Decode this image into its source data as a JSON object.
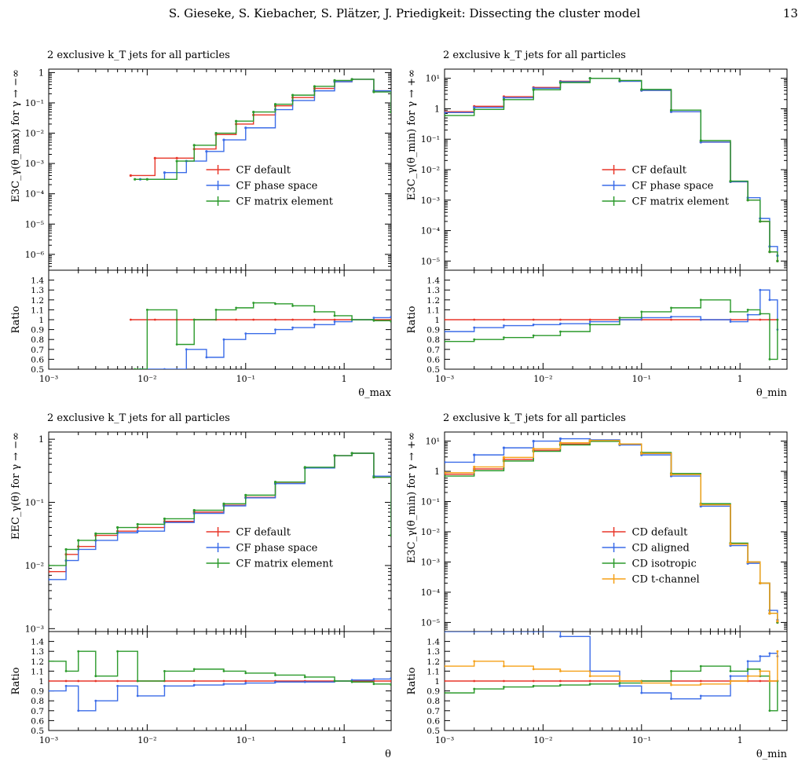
{
  "header": {
    "title": "S. Gieseke, S. Kiebacher, S. Plätzer, J. Priedigkeit: Dissecting the cluster model",
    "page_number": "13"
  },
  "colors": {
    "red": "#e8372a",
    "blue": "#3b6ce8",
    "green": "#2b9a2b",
    "orange": "#f5a017"
  },
  "chart_data": [
    {
      "type": "line",
      "subtitle": "2 exclusive k_T jets for all particles",
      "xlabel": "θ_max",
      "ylabel": "E3C_γ(θ_max) for γ → −∞",
      "ratio_label": "Ratio",
      "xlog": true,
      "ylog": true,
      "xlim": [
        0.001,
        3
      ],
      "ylim": [
        3e-07,
        1.3
      ],
      "x_ticks": [
        "10⁻³",
        "10⁻²",
        "10⁻¹",
        "1"
      ],
      "y_ticks": [
        "10⁻⁶",
        "10⁻⁵",
        "10⁻⁴",
        "10⁻³",
        "10⁻²",
        "10⁻¹",
        "1"
      ],
      "ratio_ylim": [
        0.5,
        1.5
      ],
      "ratio_ticks": [
        "0.5",
        "0.6",
        "0.7",
        "0.8",
        "0.9",
        "1",
        "1.1",
        "1.2",
        "1.3",
        "1.4"
      ],
      "legend": {
        "placement": "center-right"
      },
      "series": [
        {
          "name": "CF default",
          "color": "#e8372a",
          "x": [
            0.0068,
            0.012,
            0.02,
            0.03,
            0.05,
            0.08,
            0.12,
            0.2,
            0.3,
            0.5,
            0.8,
            1.2,
            2,
            3
          ],
          "y": [
            0.0004,
            0.0015,
            0.0015,
            0.003,
            0.009,
            0.02,
            0.04,
            0.08,
            0.15,
            0.3,
            0.5,
            0.6,
            0.25,
            0.05
          ],
          "ratio": [
            1,
            1,
            1,
            1,
            1,
            1,
            1,
            1,
            1,
            1,
            1,
            1,
            1,
            1
          ]
        },
        {
          "name": "CF phase space",
          "color": "#3b6ce8",
          "x": [
            0.0085,
            0.015,
            0.025,
            0.04,
            0.06,
            0.1,
            0.2,
            0.3,
            0.5,
            0.8,
            1.2,
            2,
            3
          ],
          "y": [
            0.0003,
            0.0005,
            0.0012,
            0.0025,
            0.006,
            0.015,
            0.06,
            0.12,
            0.25,
            0.5,
            0.6,
            0.25,
            0.05
          ],
          "ratio": [
            0.5,
            0.5,
            0.7,
            0.62,
            0.8,
            0.86,
            0.9,
            0.92,
            0.95,
            0.98,
            1.0,
            1.02,
            1.03
          ]
        },
        {
          "name": "CF matrix element",
          "color": "#2b9a2b",
          "x": [
            0.0075,
            0.01,
            0.02,
            0.03,
            0.05,
            0.08,
            0.12,
            0.2,
            0.3,
            0.5,
            0.8,
            1.2,
            2,
            3
          ],
          "y": [
            0.0003,
            0.0003,
            0.0012,
            0.004,
            0.01,
            0.025,
            0.05,
            0.09,
            0.18,
            0.35,
            0.55,
            0.6,
            0.23,
            0.05
          ],
          "ratio": [
            0.5,
            1.1,
            0.75,
            1.0,
            1.1,
            1.12,
            1.17,
            1.16,
            1.14,
            1.08,
            1.04,
            1.0,
            0.99,
            0.98
          ]
        }
      ]
    },
    {
      "type": "line",
      "subtitle": "2 exclusive k_T jets for all particles",
      "xlabel": "θ_min",
      "ylabel": "E3C_γ(θ_min) for γ → +∞",
      "ratio_label": "Ratio",
      "xlog": true,
      "ylog": true,
      "xlim": [
        0.001,
        3
      ],
      "ylim": [
        5e-06,
        20
      ],
      "x_ticks": [
        "10⁻³",
        "10⁻²",
        "10⁻¹",
        "1"
      ],
      "y_ticks": [
        "10⁻⁵",
        "10⁻⁴",
        "10⁻³",
        "10⁻²",
        "10⁻¹",
        "1",
        "10¹"
      ],
      "ratio_ylim": [
        0.5,
        1.5
      ],
      "ratio_ticks": [
        "0.5",
        "0.6",
        "0.7",
        "0.8",
        "0.9",
        "1",
        "1.1",
        "1.2",
        "1.3",
        "1.4"
      ],
      "legend": {
        "placement": "center-right"
      },
      "series": [
        {
          "name": "CF default",
          "color": "#e8372a",
          "x": [
            0.001,
            0.002,
            0.004,
            0.008,
            0.015,
            0.03,
            0.06,
            0.1,
            0.2,
            0.4,
            0.8,
            1.2,
            1.6,
            2,
            2.4
          ],
          "y": [
            0.8,
            1.2,
            2.5,
            5,
            8,
            10,
            8,
            4,
            0.8,
            0.08,
            0.004,
            0.001,
            0.0002,
            2e-05,
            1e-05
          ],
          "ratio": [
            1,
            1,
            1,
            1,
            1,
            1,
            1,
            1,
            1,
            1,
            1,
            1,
            1,
            1,
            1
          ]
        },
        {
          "name": "CF phase space",
          "color": "#3b6ce8",
          "x": [
            0.001,
            0.002,
            0.004,
            0.008,
            0.015,
            0.03,
            0.06,
            0.1,
            0.2,
            0.4,
            0.8,
            1.2,
            1.6,
            2,
            2.4
          ],
          "y": [
            0.75,
            1.1,
            2.3,
            4.7,
            7.7,
            10,
            8,
            4,
            0.8,
            0.08,
            0.004,
            0.0012,
            0.00025,
            3e-05,
            1.5e-05
          ],
          "ratio": [
            0.88,
            0.92,
            0.94,
            0.95,
            0.96,
            0.98,
            1.0,
            1.02,
            1.03,
            1.0,
            0.98,
            1.05,
            1.3,
            1.2,
            0.9
          ]
        },
        {
          "name": "CF matrix element",
          "color": "#2b9a2b",
          "x": [
            0.001,
            0.002,
            0.004,
            0.008,
            0.015,
            0.03,
            0.06,
            0.1,
            0.2,
            0.4,
            0.8,
            1.2,
            1.6,
            2,
            2.4
          ],
          "y": [
            0.6,
            0.95,
            2,
            4.2,
            7.2,
            10,
            8.5,
            4.3,
            0.9,
            0.09,
            0.0042,
            0.001,
            0.0002,
            2e-05,
            1e-05
          ],
          "ratio": [
            0.78,
            0.8,
            0.82,
            0.84,
            0.88,
            0.95,
            1.02,
            1.08,
            1.12,
            1.2,
            1.08,
            1.1,
            1.06,
            0.6,
            1.0
          ]
        }
      ]
    },
    {
      "type": "line",
      "subtitle": "2 exclusive k_T jets for all particles",
      "xlabel": "θ",
      "ylabel": "EEC_γ(θ) for γ → −∞",
      "ratio_label": "Ratio",
      "xlog": true,
      "ylog": true,
      "xlim": [
        0.001,
        3
      ],
      "ylim": [
        0.0009,
        1.3
      ],
      "x_ticks": [
        "10⁻³",
        "10⁻²",
        "10⁻¹",
        "1"
      ],
      "y_ticks": [
        "10⁻³",
        "10⁻²",
        "10⁻¹",
        "1"
      ],
      "ratio_ylim": [
        0.5,
        1.5
      ],
      "ratio_ticks": [
        "0.5",
        "0.6",
        "0.7",
        "0.8",
        "0.9",
        "1",
        "1.1",
        "1.2",
        "1.3",
        "1.4"
      ],
      "legend": {
        "placement": "center-right"
      },
      "series": [
        {
          "name": "CF default",
          "color": "#e8372a",
          "x": [
            0.001,
            0.0015,
            0.002,
            0.003,
            0.005,
            0.008,
            0.015,
            0.03,
            0.06,
            0.1,
            0.2,
            0.4,
            0.8,
            1.2,
            2,
            3
          ],
          "y": [
            0.008,
            0.015,
            0.02,
            0.03,
            0.035,
            0.04,
            0.05,
            0.07,
            0.09,
            0.12,
            0.2,
            0.35,
            0.55,
            0.6,
            0.25,
            0.03
          ],
          "ratio": [
            1,
            1,
            1,
            1,
            1,
            1,
            1,
            1,
            1,
            1,
            1,
            1,
            1,
            1,
            1,
            1
          ]
        },
        {
          "name": "CF phase space",
          "color": "#3b6ce8",
          "x": [
            0.001,
            0.0015,
            0.002,
            0.003,
            0.005,
            0.008,
            0.015,
            0.03,
            0.06,
            0.1,
            0.2,
            0.4,
            0.8,
            1.2,
            2,
            3
          ],
          "y": [
            0.006,
            0.012,
            0.018,
            0.025,
            0.033,
            0.035,
            0.048,
            0.067,
            0.088,
            0.118,
            0.198,
            0.35,
            0.55,
            0.6,
            0.26,
            0.03
          ],
          "ratio": [
            0.9,
            0.95,
            0.7,
            0.8,
            0.95,
            0.85,
            0.95,
            0.96,
            0.97,
            0.98,
            0.99,
            0.99,
            1.0,
            1.01,
            1.02,
            1.03
          ]
        },
        {
          "name": "CF matrix element",
          "color": "#2b9a2b",
          "x": [
            0.001,
            0.0015,
            0.002,
            0.003,
            0.005,
            0.008,
            0.015,
            0.03,
            0.06,
            0.1,
            0.2,
            0.4,
            0.8,
            1.2,
            2,
            3
          ],
          "y": [
            0.01,
            0.018,
            0.025,
            0.032,
            0.04,
            0.045,
            0.055,
            0.075,
            0.095,
            0.13,
            0.21,
            0.36,
            0.55,
            0.6,
            0.25,
            0.03
          ],
          "ratio": [
            1.2,
            1.1,
            1.3,
            1.05,
            1.3,
            1.0,
            1.1,
            1.12,
            1.1,
            1.08,
            1.06,
            1.04,
            1.0,
            0.99,
            0.97,
            0.96
          ]
        }
      ]
    },
    {
      "type": "line",
      "subtitle": "2 exclusive k_T jets for all particles",
      "xlabel": "θ_min",
      "ylabel": "E3C_γ(θ_min) for γ → +∞",
      "ratio_label": "Ratio",
      "xlog": true,
      "ylog": true,
      "xlim": [
        0.001,
        3
      ],
      "ylim": [
        5e-06,
        20
      ],
      "x_ticks": [
        "10⁻³",
        "10⁻²",
        "10⁻¹",
        "1"
      ],
      "y_ticks": [
        "10⁻⁵",
        "10⁻⁴",
        "10⁻³",
        "10⁻²",
        "10⁻¹",
        "1",
        "10¹"
      ],
      "ratio_ylim": [
        0.5,
        1.5
      ],
      "ratio_ticks": [
        "0.5",
        "0.6",
        "0.7",
        "0.8",
        "0.9",
        "1",
        "1.1",
        "1.2",
        "1.3",
        "1.4"
      ],
      "legend": {
        "placement": "center-right"
      },
      "series": [
        {
          "name": "CD default",
          "color": "#e8372a",
          "x": [
            0.001,
            0.002,
            0.004,
            0.008,
            0.015,
            0.03,
            0.06,
            0.1,
            0.2,
            0.4,
            0.8,
            1.2,
            1.6,
            2,
            2.4
          ],
          "y": [
            0.8,
            1.2,
            2.5,
            5,
            8,
            10,
            8,
            4,
            0.8,
            0.08,
            0.004,
            0.001,
            0.0002,
            2e-05,
            1e-05
          ],
          "ratio": [
            1,
            1,
            1,
            1,
            1,
            1,
            1,
            1,
            1,
            1,
            1,
            1,
            1,
            1,
            1
          ]
        },
        {
          "name": "CD aligned",
          "color": "#3b6ce8",
          "x": [
            0.001,
            0.002,
            0.004,
            0.008,
            0.015,
            0.03,
            0.06,
            0.1,
            0.2,
            0.4,
            0.8,
            1.2,
            1.6,
            2,
            2.4
          ],
          "y": [
            2,
            3.5,
            6,
            10,
            12,
            11,
            7.5,
            3.5,
            0.7,
            0.07,
            0.0035,
            0.0009,
            0.0002,
            2.5e-05,
            1.2e-05
          ],
          "ratio": [
            1.5,
            1.5,
            1.5,
            1.5,
            1.45,
            1.1,
            0.95,
            0.88,
            0.82,
            0.85,
            1.05,
            1.2,
            1.25,
            1.28,
            1.25
          ]
        },
        {
          "name": "CD isotropic",
          "color": "#2b9a2b",
          "x": [
            0.001,
            0.002,
            0.004,
            0.008,
            0.015,
            0.03,
            0.06,
            0.1,
            0.2,
            0.4,
            0.8,
            1.2,
            1.6,
            2,
            2.4
          ],
          "y": [
            0.7,
            1.05,
            2.2,
            4.6,
            7.5,
            9.8,
            8,
            4.2,
            0.85,
            0.085,
            0.0042,
            0.001,
            0.0002,
            2e-05,
            1e-05
          ],
          "ratio": [
            0.88,
            0.92,
            0.94,
            0.95,
            0.96,
            0.97,
            0.98,
            1.0,
            1.1,
            1.15,
            1.1,
            1.12,
            1.05,
            0.7,
            1.0
          ]
        },
        {
          "name": "CD t-channel",
          "color": "#f5a017",
          "x": [
            0.001,
            0.002,
            0.004,
            0.008,
            0.015,
            0.03,
            0.06,
            0.1,
            0.2,
            0.4,
            0.8,
            1.2,
            1.6,
            2,
            2.4
          ],
          "y": [
            0.9,
            1.4,
            2.9,
            5.6,
            8.8,
            10.5,
            8,
            3.9,
            0.78,
            0.078,
            0.0039,
            0.001,
            0.0002,
            2e-05,
            1.1e-05
          ],
          "ratio": [
            1.15,
            1.2,
            1.15,
            1.12,
            1.1,
            1.05,
            1.0,
            0.98,
            0.96,
            0.97,
            1.0,
            1.05,
            1.1,
            1.0,
            1.3
          ]
        }
      ]
    }
  ]
}
